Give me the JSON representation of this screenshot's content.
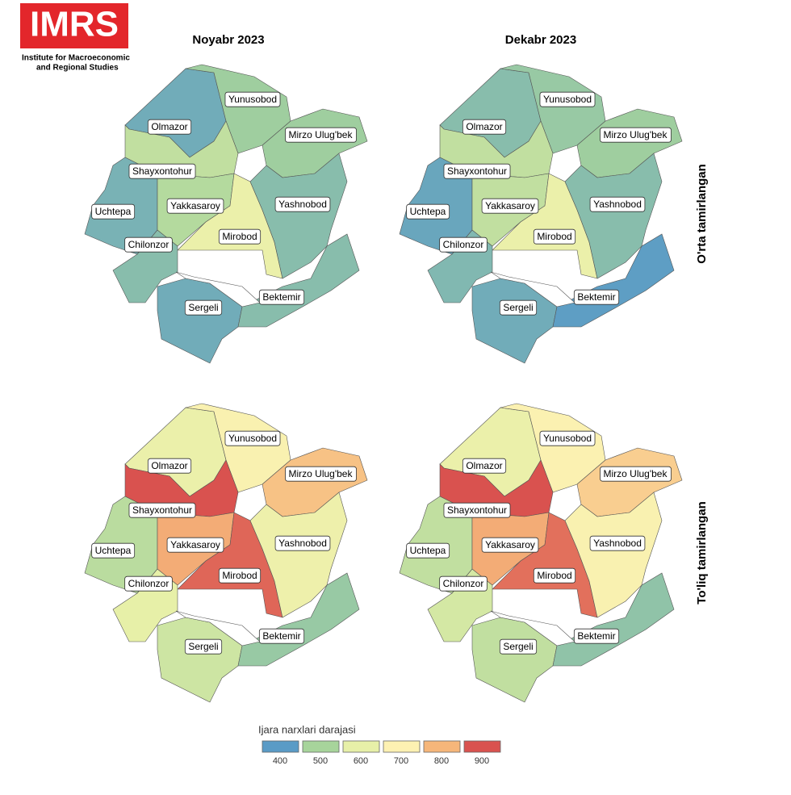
{
  "logo": {
    "text": "IMRS",
    "subtitle_lines": [
      "Institute for Macroeconomic",
      "and Regional Studies"
    ]
  },
  "chart_data": {
    "type": "choropleth",
    "columns": [
      "Noyabr 2023",
      "Dekabr 2023"
    ],
    "rows": [
      "O'rta tamirlangan",
      "To'liq tamirlangan"
    ],
    "districts": [
      "Olmazor",
      "Yunusobod",
      "Mirzo Ulug'bek",
      "Shayxontohur",
      "Uchtepa",
      "Yakkasaroy",
      "Mirobod",
      "Yashnobod",
      "Chilonzor",
      "Sergeli",
      "Bektemir"
    ],
    "panels": [
      {
        "values": [
          430,
          490,
          490,
          540,
          440,
          520,
          620,
          460,
          460,
          430,
          460
        ]
      },
      {
        "values": [
          460,
          480,
          490,
          540,
          420,
          540,
          620,
          460,
          450,
          430,
          405
        ]
      },
      {
        "values": [
          620,
          680,
          780,
          900,
          530,
          810,
          880,
          630,
          600,
          560,
          480
        ]
      },
      {
        "values": [
          620,
          690,
          760,
          900,
          540,
          810,
          870,
          680,
          570,
          540,
          470
        ]
      }
    ],
    "legend": {
      "title": "Ijara narxlari darajasi",
      "ticks": [
        400,
        500,
        600,
        700,
        800,
        900
      ],
      "colors": [
        "#5a9bc6",
        "#a7d49b",
        "#e7f0a8",
        "#fdf1b2",
        "#f6b67a",
        "#d9524f"
      ]
    }
  }
}
